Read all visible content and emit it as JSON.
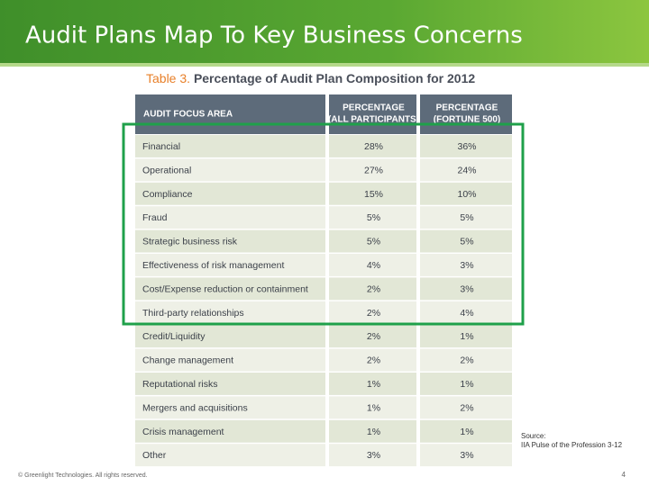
{
  "header": {
    "title": "Audit Plans Map To Key Business Concerns"
  },
  "table": {
    "caption": {
      "label": "Table 3.",
      "text": "Percentage of Audit Plan Composition for 2012"
    },
    "columns": [
      [
        "AUDIT FOCUS AREA"
      ],
      [
        "PERCENTAGE",
        "(ALL PARTICIPANTS)"
      ],
      [
        "PERCENTAGE",
        "(FORTUNE 500)"
      ]
    ],
    "rows": [
      [
        "Financial",
        "28%",
        "36%"
      ],
      [
        "Operational",
        "27%",
        "24%"
      ],
      [
        "Compliance",
        "15%",
        "10%"
      ],
      [
        "Fraud",
        "5%",
        "5%"
      ],
      [
        "Strategic business risk",
        "5%",
        "5%"
      ],
      [
        "Effectiveness of risk management",
        "4%",
        "3%"
      ],
      [
        "Cost/Expense reduction or containment",
        "2%",
        "3%"
      ],
      [
        "Third-party relationships",
        "2%",
        "4%"
      ],
      [
        "Credit/Liquidity",
        "2%",
        "1%"
      ],
      [
        "Change management",
        "2%",
        "2%"
      ],
      [
        "Reputational risks",
        "1%",
        "1%"
      ],
      [
        "Mergers and acquisitions",
        "1%",
        "2%"
      ],
      [
        "Crisis management",
        "1%",
        "1%"
      ],
      [
        "Other",
        "3%",
        "3%"
      ]
    ]
  },
  "source": [
    "Source:",
    "IIA Pulse of the Profession 3-12"
  ],
  "footer": {
    "copyright": "© Greenlight Technologies. All rights reserved.",
    "page": "4"
  }
}
